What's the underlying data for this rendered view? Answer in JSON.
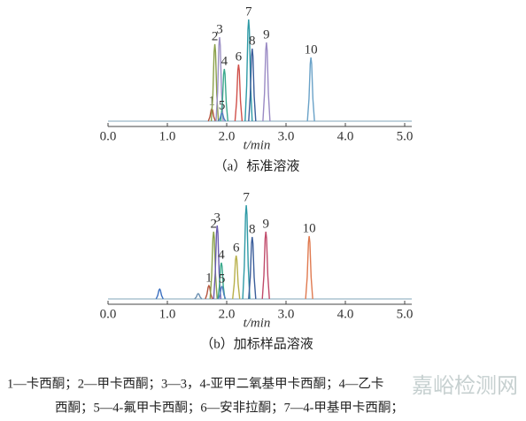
{
  "chart_data": [
    {
      "type": "peaks",
      "caption": "（a）标准溶液",
      "xlabel": "t/min",
      "xlim": [
        0,
        5
      ],
      "ylim": [
        0,
        120
      ],
      "xticks": [
        {
          "value": 0,
          "label": "0.0"
        },
        {
          "value": 1,
          "label": "1.0"
        },
        {
          "value": 2,
          "label": "2.0"
        },
        {
          "value": 3,
          "label": "3.0"
        },
        {
          "value": 4,
          "label": "4.0"
        },
        {
          "value": 5,
          "label": "5.0"
        }
      ],
      "series": [
        {
          "name": "1",
          "color": "#b5533c",
          "x": 1.75,
          "height": 14
        },
        {
          "name": "2",
          "color": "#8aa04a",
          "x": 1.8,
          "height": 87
        },
        {
          "name": "3",
          "color": "#9b8fc4",
          "x": 1.88,
          "height": 95
        },
        {
          "name": "4",
          "color": "#3aa88c",
          "x": 1.96,
          "height": 59
        },
        {
          "name": "5",
          "color": "#4f7fc0",
          "x": 1.92,
          "height": 9
        },
        {
          "name": "6",
          "color": "#d0504a",
          "x": 2.2,
          "height": 64
        },
        {
          "name": "7",
          "color": "#2f9aa6",
          "x": 2.37,
          "height": 115
        },
        {
          "name": "8",
          "color": "#3a5d9a",
          "x": 2.43,
          "height": 82
        },
        {
          "name": "9",
          "color": "#9a8ac4",
          "x": 2.67,
          "height": 89
        },
        {
          "name": "10",
          "color": "#6aa2c8",
          "x": 3.42,
          "height": 72
        }
      ]
    },
    {
      "type": "peaks",
      "caption": "（b）加标样品溶液",
      "xlabel": "t/min",
      "xlim": [
        0,
        5
      ],
      "ylim": [
        0,
        120
      ],
      "xticks": [
        {
          "value": 0,
          "label": "0.0"
        },
        {
          "value": 1,
          "label": "1.0"
        },
        {
          "value": 2,
          "label": "2.0"
        },
        {
          "value": 3,
          "label": "3.0"
        },
        {
          "value": 4,
          "label": "4.0"
        },
        {
          "value": 5,
          "label": "5.0"
        }
      ],
      "series": [
        {
          "name": "1",
          "color": "#b5533c",
          "x": 1.7,
          "height": 15
        },
        {
          "name": "2",
          "color": "#8aa04a",
          "x": 1.78,
          "height": 76
        },
        {
          "name": "3",
          "color": "#6a5cb0",
          "x": 1.84,
          "height": 83
        },
        {
          "name": "4",
          "color": "#3aa88c",
          "x": 1.91,
          "height": 41
        },
        {
          "name": "5",
          "color": "#4f7fc0",
          "x": 1.92,
          "height": 14
        },
        {
          "name": "6",
          "color": "#b8b04a",
          "x": 2.16,
          "height": 49
        },
        {
          "name": "7",
          "color": "#2f9aa6",
          "x": 2.33,
          "height": 106
        },
        {
          "name": "8",
          "color": "#3a5d9a",
          "x": 2.43,
          "height": 70
        },
        {
          "name": "9",
          "color": "#c04a6a",
          "x": 2.66,
          "height": 76
        },
        {
          "name": "10",
          "color": "#e07a50",
          "x": 3.39,
          "height": 71
        },
        {
          "name": null,
          "color": "#3a6fc0",
          "x": 0.87,
          "height": 11
        },
        {
          "name": null,
          "color": "#6a8fb0",
          "x": 1.52,
          "height": 6
        }
      ]
    }
  ],
  "legend_lines": [
    "1—卡西酮；2—甲卡西酮；3—3，4-亚甲二氧基甲卡西酮；4—乙卡",
    "西酮；5—4-氟甲卡西酮；6—安非拉酮；7—4-甲基甲卡西酮；"
  ],
  "watermark": "嘉峪检测网"
}
